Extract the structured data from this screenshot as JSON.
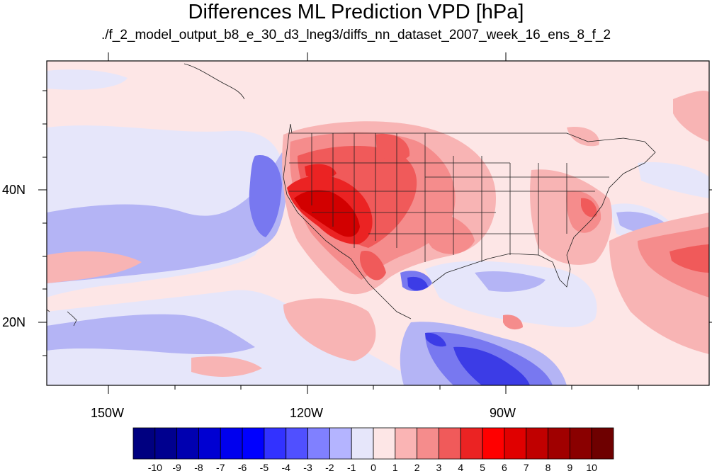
{
  "title": "Differences ML Prediction VPD [hPa]",
  "subtitle": "./f_2_model_output_b8_e_30_d3_lneg3/diffs_nn_dataset_2007_week_16_ens_8_f_2",
  "map": {
    "lon_range": [
      -160,
      -62
    ],
    "lat_range": [
      10,
      59
    ],
    "x_tick_labels": [
      "150W",
      "120W",
      "90W"
    ],
    "y_tick_labels": [
      "40N",
      "20N"
    ],
    "background_color": "#fde6e6",
    "colors": {
      "light_blue": "#e6e6fa",
      "blue_1": "#b4b4f5",
      "blue_2": "#8c8cf5",
      "blue_3": "#6464f0",
      "blue_4": "#3232e6",
      "light_red": "#f8b4b4",
      "red_1": "#f58c8c",
      "red_2": "#f05a5a",
      "red_3": "#eb2323",
      "red_4": "#d20000"
    }
  },
  "colorbar": {
    "labels": [
      "-10",
      "-9",
      "-8",
      "-7",
      "-6",
      "-5",
      "-4",
      "-3",
      "-2",
      "-1",
      "0",
      "1",
      "2",
      "3",
      "4",
      "5",
      "6",
      "7",
      "8",
      "9",
      "10"
    ],
    "colors": [
      "#000080",
      "#00008f",
      "#0000b0",
      "#0000d2",
      "#0000ee",
      "#0000ff",
      "#3232ff",
      "#5050ff",
      "#8080ff",
      "#b4b4ff",
      "#e6e6fa",
      "#fde6e6",
      "#fab4b4",
      "#f58c8c",
      "#f05a5a",
      "#eb2323",
      "#ff0000",
      "#e00000",
      "#c00000",
      "#a00000",
      "#8a0000",
      "#6e0000"
    ]
  }
}
